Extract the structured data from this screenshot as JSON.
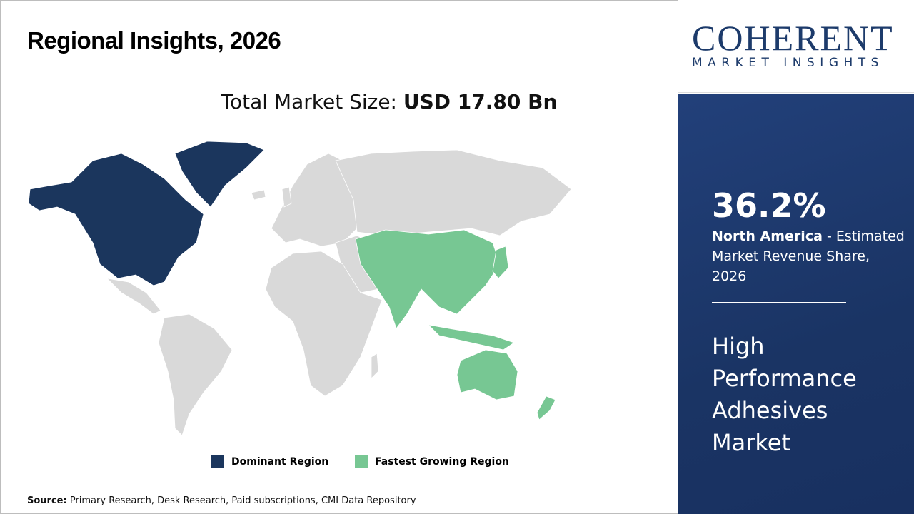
{
  "header": {
    "title": "Regional Insights, 2026",
    "total_label": "Total Market Size: ",
    "total_value": "USD 17.80 Bn"
  },
  "legend": [
    {
      "label": "Dominant Region",
      "color": "#1b365d"
    },
    {
      "label": "Fastest Growing Region",
      "color": "#77c793"
    }
  ],
  "map": {
    "land_color": "#d9d9d9",
    "dominant_region": "North America",
    "fastest_growing_region": "Asia Pacific"
  },
  "source": {
    "label": "Source:",
    "text": " Primary Research, Desk Research, Paid subscriptions, CMI Data Repository"
  },
  "logo": {
    "line1": "COHERENT",
    "line2": "MARKET INSIGHTS"
  },
  "panel": {
    "percent": "36.2%",
    "region": "North America",
    "desc": " - Estimated Market Revenue Share, 2026",
    "market": "High Performance Adhesives Market"
  }
}
